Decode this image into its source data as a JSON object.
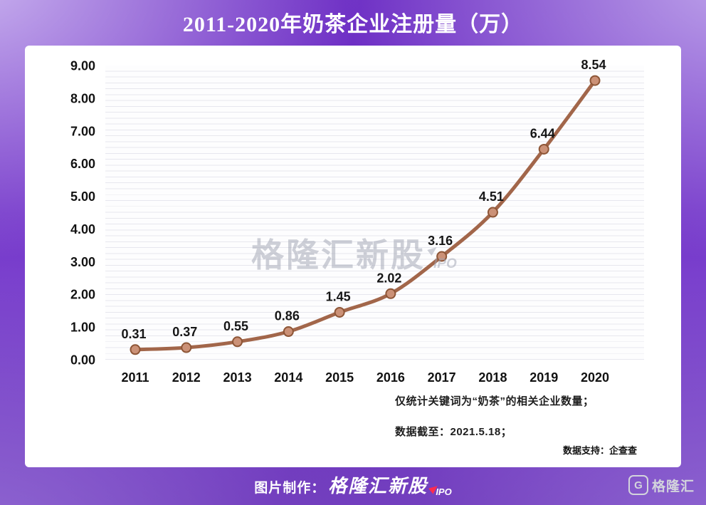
{
  "page_title": "2011-2020年奶茶企业注册量（万）",
  "chart_data": {
    "type": "line",
    "title": "2011-2020年奶茶企业注册量（万）",
    "categories": [
      "2011",
      "2012",
      "2013",
      "2014",
      "2015",
      "2016",
      "2017",
      "2018",
      "2019",
      "2020"
    ],
    "values": [
      0.31,
      0.37,
      0.55,
      0.86,
      1.45,
      2.02,
      3.16,
      4.51,
      6.44,
      8.54
    ],
    "value_labels": [
      "0.31",
      "0.37",
      "0.55",
      "0.86",
      "1.45",
      "2.02",
      "3.16",
      "4.51",
      "6.44",
      "8.54"
    ],
    "ylim": [
      0,
      9
    ],
    "ytick_labels": [
      "0.00",
      "1.00",
      "2.00",
      "3.00",
      "4.00",
      "5.00",
      "6.00",
      "7.00",
      "8.00",
      "9.00"
    ],
    "grid": true,
    "legend_position": "none",
    "line_color": "#a2664a",
    "marker_fill_color": "#cb9177",
    "marker_border_color": "#8d5536",
    "label_color": "#161616"
  },
  "watermark": {
    "text": "格隆汇新股",
    "sub": "IPO"
  },
  "notes": {
    "line1": "仅统计关键词为“奶茶”的相关企业数量；",
    "line2": "数据截至：2021.5.18；"
  },
  "source_text": "数据支持：企查查",
  "footer": {
    "prefix": "图片制作：",
    "brand": "格隆汇新股",
    "brand_sub": "IPO",
    "logo_letter": "G",
    "logo_text": "格隆汇"
  },
  "colors": {
    "background_purple": "#6d2ec4",
    "title_text": "#ffffff",
    "card_background": "#ffffff",
    "line": "#a2664a",
    "accent_red": "#ff2b4e"
  }
}
